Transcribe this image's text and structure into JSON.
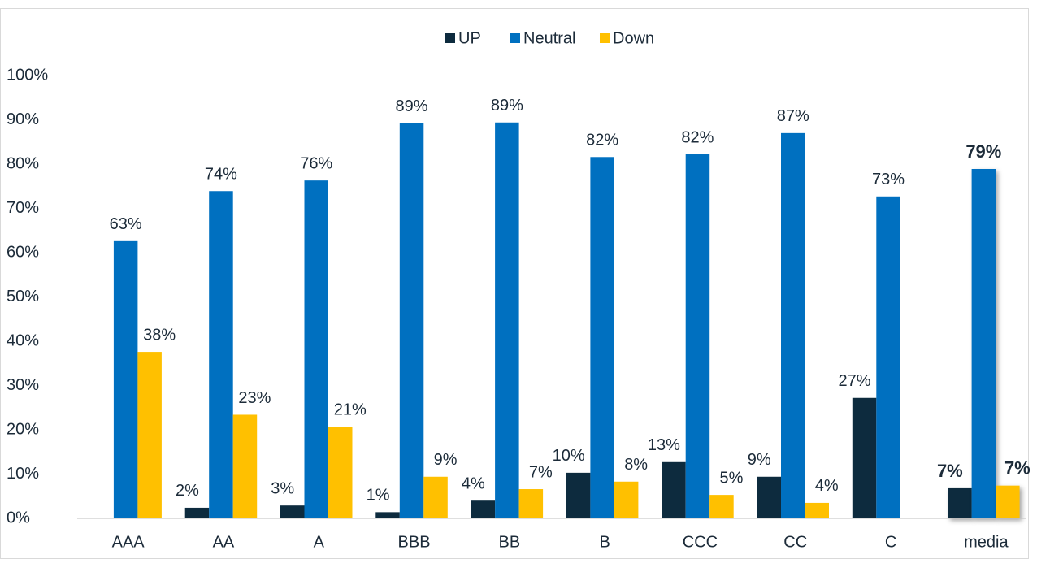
{
  "chart_data": {
    "type": "bar",
    "categories": [
      "AAA",
      "AA",
      "A",
      "BBB",
      "BB",
      "B",
      "CCC",
      "CC",
      "C",
      "media"
    ],
    "series": [
      {
        "name": "UP",
        "color": "#0d2b3e",
        "values": [
          null,
          2.4,
          2.9,
          1.4,
          4.0,
          10.3,
          12.7,
          9.4,
          27.2,
          6.8
        ],
        "value_labels": [
          null,
          "2%",
          "3%",
          "1%",
          "4%",
          "10%",
          "13%",
          "9%",
          "27%",
          "7%"
        ]
      },
      {
        "name": "Neutral",
        "color": "#0070c0",
        "values": [
          62.6,
          73.9,
          76.3,
          89.2,
          89.4,
          81.6,
          82.2,
          87.0,
          72.7,
          78.9
        ],
        "value_labels": [
          "63%",
          "74%",
          "76%",
          "89%",
          "89%",
          "82%",
          "82%",
          "87%",
          "73%",
          "79%"
        ]
      },
      {
        "name": "Down",
        "color": "#ffc000",
        "values": [
          37.6,
          23.4,
          20.7,
          9.4,
          6.6,
          8.3,
          5.3,
          3.5,
          null,
          7.4
        ],
        "value_labels": [
          "38%",
          "23%",
          "21%",
          "9%",
          "7%",
          "8%",
          "5%",
          "4%",
          null,
          "7%"
        ]
      }
    ],
    "ylim": [
      0,
      100
    ],
    "yticks": [
      {
        "value": 0,
        "label": "0%"
      },
      {
        "value": 10,
        "label": "10%"
      },
      {
        "value": 20,
        "label": "20%"
      },
      {
        "value": 30,
        "label": "30%"
      },
      {
        "value": 40,
        "label": "40%"
      },
      {
        "value": 50,
        "label": "50%"
      },
      {
        "value": 60,
        "label": "60%"
      },
      {
        "value": 70,
        "label": "70%"
      },
      {
        "value": 80,
        "label": "80%"
      },
      {
        "value": 90,
        "label": "90%"
      },
      {
        "value": 100,
        "label": "100%"
      }
    ],
    "grid": false,
    "legend": "top"
  }
}
